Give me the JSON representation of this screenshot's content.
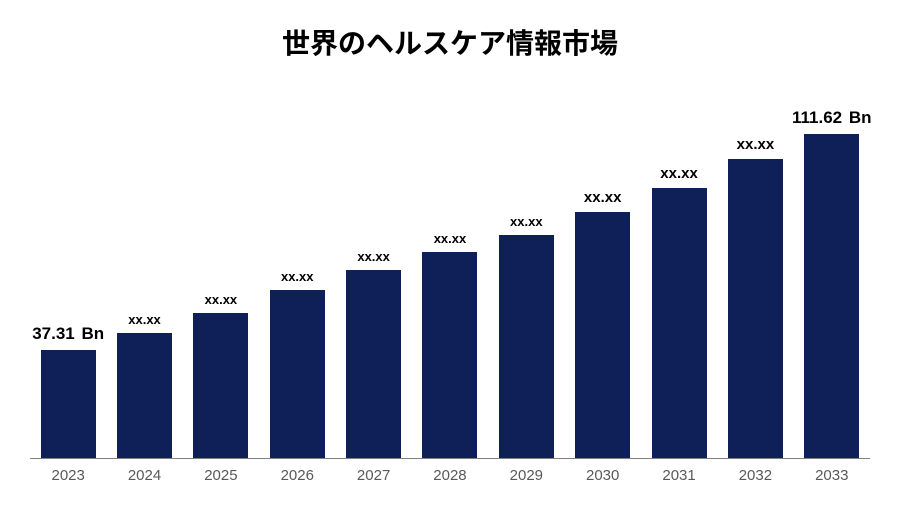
{
  "chart": {
    "type": "bar",
    "title": "世界のヘルスケア情報市場",
    "title_fontsize": 28,
    "title_color": "#000000",
    "background_color": "#ffffff",
    "bar_color": "#0f1f57",
    "axis_color": "#808080",
    "xlabel_color": "#595959",
    "xlabel_fontsize": 15,
    "value_label_color": "#000000",
    "bar_width_ratio": 0.72,
    "y_max": 120,
    "categories": [
      "2023",
      "2024",
      "2025",
      "2026",
      "2027",
      "2028",
      "2029",
      "2030",
      "2031",
      "2032",
      "2033"
    ],
    "values": [
      37.31,
      43.0,
      50.0,
      58.0,
      65.0,
      71.0,
      77.0,
      85.0,
      93.0,
      103.0,
      111.62
    ],
    "value_labels": [
      "37.31",
      "xx.xx",
      "xx.xx",
      "xx.xx",
      "xx.xx",
      "xx.xx",
      "xx.xx",
      "xx.xx",
      "xx.xx",
      "xx.xx",
      "111.62"
    ],
    "value_label_units": [
      "Bn",
      "",
      "",
      "",
      "",
      "",
      "",
      "",
      "",
      "",
      "Bn"
    ],
    "value_label_fontsizes": [
      17,
      13,
      13,
      13,
      13,
      13,
      13,
      15,
      15,
      15,
      17
    ]
  }
}
